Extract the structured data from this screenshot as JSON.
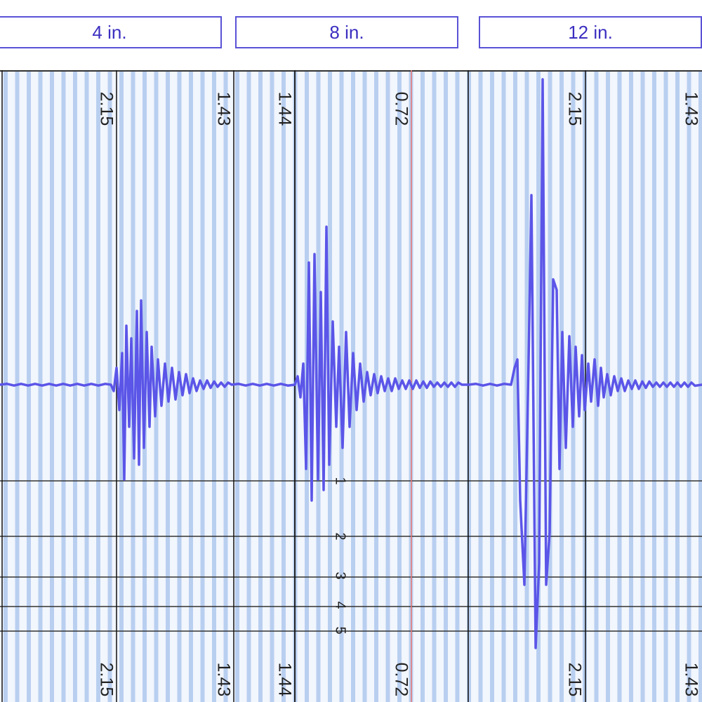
{
  "tabs": [
    {
      "label": "4 in."
    },
    {
      "label": "8 in."
    },
    {
      "label": "12 in."
    }
  ],
  "colors": {
    "accent": "#5a52d6",
    "trace": "#5b55e8",
    "grid_stripe": "#b9cff0",
    "background": "#f2f6fd",
    "marker_line": "#e57878",
    "boundary": "#111111"
  },
  "chart_data": {
    "type": "line",
    "grid": true,
    "scale_labels": [
      "2.15",
      "1.43",
      "1.44",
      "0.72",
      "2.15",
      "1.43"
    ],
    "marker_ticks": [
      "1",
      "2",
      "3",
      "4",
      "5"
    ],
    "series": [
      {
        "values": [
          [
            0,
            0
          ],
          [
            10,
            0.4
          ],
          [
            20,
            -0.4
          ],
          [
            30,
            0.4
          ],
          [
            40,
            -0.4
          ],
          [
            50,
            0.4
          ],
          [
            60,
            -0.4
          ],
          [
            70,
            0.4
          ],
          [
            80,
            -0.4
          ],
          [
            90,
            0.4
          ],
          [
            100,
            -0.4
          ],
          [
            110,
            0.4
          ],
          [
            120,
            -0.4
          ],
          [
            130,
            0.4
          ],
          [
            140,
            -0.4
          ],
          [
            150,
            0.4
          ],
          [
            158,
            0
          ],
          [
            162,
            -3
          ],
          [
            166,
            8
          ],
          [
            170,
            -12
          ],
          [
            174,
            15
          ],
          [
            177,
            -45
          ],
          [
            180,
            28
          ],
          [
            184,
            -20
          ],
          [
            187,
            22
          ],
          [
            191,
            -35
          ],
          [
            195,
            35
          ],
          [
            198,
            -38
          ],
          [
            201,
            40
          ],
          [
            205,
            -30
          ],
          [
            209,
            25
          ],
          [
            213,
            -20
          ],
          [
            216,
            18
          ],
          [
            221,
            -15
          ],
          [
            225,
            12
          ],
          [
            230,
            -10
          ],
          [
            235,
            10
          ],
          [
            240,
            -8
          ],
          [
            245,
            8
          ],
          [
            250,
            -7
          ],
          [
            255,
            6
          ],
          [
            260,
            -5
          ],
          [
            265,
            5
          ],
          [
            270,
            -4
          ],
          [
            275,
            3
          ],
          [
            280,
            -3
          ],
          [
            285,
            2
          ],
          [
            290,
            -2
          ],
          [
            295,
            2
          ],
          [
            300,
            -1.5
          ],
          [
            305,
            1.5
          ],
          [
            310,
            -1
          ],
          [
            315,
            1
          ],
          [
            320,
            -1
          ],
          [
            325,
            1
          ],
          [
            330,
            0
          ],
          [
            340,
            0.4
          ],
          [
            350,
            -0.4
          ],
          [
            360,
            0.4
          ],
          [
            370,
            -0.4
          ],
          [
            380,
            0.4
          ],
          [
            390,
            -0.4
          ],
          [
            400,
            0.4
          ],
          [
            410,
            -0.4
          ],
          [
            420,
            0
          ],
          [
            424,
            4
          ],
          [
            428,
            -6
          ],
          [
            432,
            10
          ],
          [
            436,
            -40
          ],
          [
            440,
            58
          ],
          [
            444,
            -55
          ],
          [
            448,
            62
          ],
          [
            453,
            -45
          ],
          [
            457,
            44
          ],
          [
            461,
            -50
          ],
          [
            465,
            75
          ],
          [
            469,
            -38
          ],
          [
            474,
            30
          ],
          [
            479,
            -20
          ],
          [
            483,
            18
          ],
          [
            488,
            -30
          ],
          [
            493,
            25
          ],
          [
            498,
            -20
          ],
          [
            503,
            15
          ],
          [
            508,
            -12
          ],
          [
            513,
            10
          ],
          [
            518,
            -8
          ],
          [
            523,
            6
          ],
          [
            528,
            -5
          ],
          [
            533,
            5
          ],
          [
            538,
            -4
          ],
          [
            543,
            4
          ],
          [
            548,
            -3
          ],
          [
            553,
            3
          ],
          [
            558,
            -3
          ],
          [
            563,
            3
          ],
          [
            568,
            -2
          ],
          [
            573,
            2
          ],
          [
            578,
            -2
          ],
          [
            583,
            2
          ],
          [
            588,
            -2
          ],
          [
            593,
            2
          ],
          [
            598,
            -1.5
          ],
          [
            603,
            1.5
          ],
          [
            608,
            -1.5
          ],
          [
            613,
            1.5
          ],
          [
            618,
            -1
          ],
          [
            623,
            1
          ],
          [
            628,
            -1
          ],
          [
            633,
            1
          ],
          [
            638,
            -1
          ],
          [
            643,
            1
          ],
          [
            648,
            -1
          ],
          [
            653,
            1
          ],
          [
            658,
            0
          ],
          [
            668,
            0
          ],
          [
            678,
            0.4
          ],
          [
            688,
            -0.4
          ],
          [
            698,
            0.4
          ],
          [
            708,
            -0.4
          ],
          [
            718,
            0.4
          ],
          [
            728,
            0
          ],
          [
            733,
            8
          ],
          [
            737,
            12
          ],
          [
            741,
            -55
          ],
          [
            747,
            -95
          ],
          [
            753,
            12
          ],
          [
            757,
            90
          ],
          [
            763,
            -125
          ],
          [
            768,
            -85
          ],
          [
            773,
            145
          ],
          [
            778,
            -95
          ],
          [
            783,
            -70
          ],
          [
            788,
            50
          ],
          [
            793,
            45
          ],
          [
            797,
            -40
          ],
          [
            801,
            25
          ],
          [
            806,
            -30
          ],
          [
            811,
            23
          ],
          [
            816,
            -20
          ],
          [
            820,
            18
          ],
          [
            825,
            -15
          ],
          [
            829,
            14
          ],
          [
            833,
            -12
          ],
          [
            838,
            10
          ],
          [
            842,
            -8
          ],
          [
            847,
            12
          ],
          [
            852,
            -10
          ],
          [
            856,
            8
          ],
          [
            860,
            -6
          ],
          [
            865,
            5
          ],
          [
            870,
            -5
          ],
          [
            875,
            4
          ],
          [
            880,
            -3
          ],
          [
            885,
            3
          ],
          [
            890,
            -3
          ],
          [
            895,
            2
          ],
          [
            900,
            -2
          ],
          [
            905,
            2
          ],
          [
            910,
            -2
          ],
          [
            915,
            1.5
          ],
          [
            920,
            -1.5
          ],
          [
            925,
            1.5
          ],
          [
            930,
            -1
          ],
          [
            935,
            1
          ],
          [
            940,
            -1
          ],
          [
            945,
            1
          ],
          [
            950,
            -1
          ],
          [
            955,
            1
          ],
          [
            960,
            -1
          ],
          [
            965,
            1
          ],
          [
            970,
            -1
          ],
          [
            975,
            1
          ],
          [
            980,
            -1
          ],
          [
            985,
            1
          ],
          [
            990,
            -0.5
          ],
          [
            1000,
            0
          ]
        ]
      }
    ]
  }
}
